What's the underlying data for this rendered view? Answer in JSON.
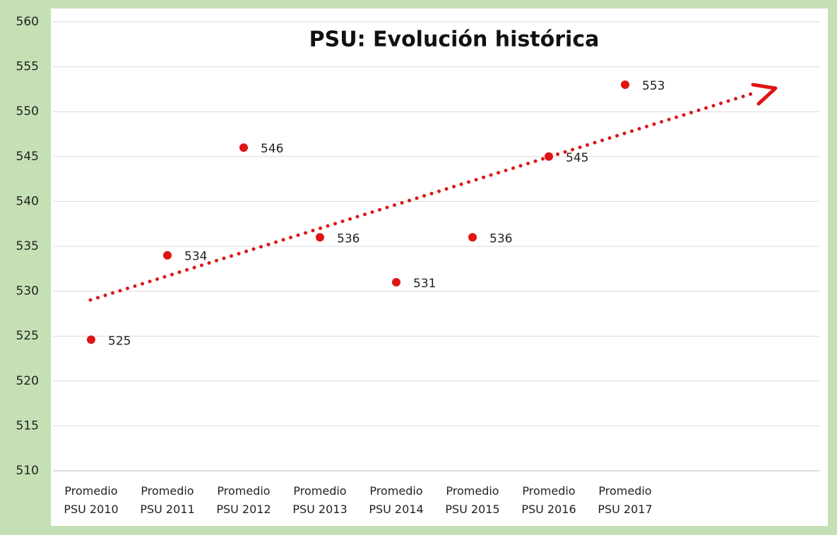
{
  "chart_data": {
    "type": "scatter",
    "title": "PSU: Evolución histórica",
    "categories": [
      "Promedio PSU 2010",
      "Promedio PSU 2011",
      "Promedio PSU 2012",
      "Promedio PSU 2013",
      "Promedio PSU 2014",
      "Promedio PSU 2015",
      "Promedio PSU 2016",
      "Promedio PSU 2017",
      null,
      null
    ],
    "values": [
      524.6,
      534,
      546,
      536,
      531,
      536,
      545,
      553,
      null,
      null
    ],
    "value_labels": [
      "525",
      "534",
      "546",
      "536",
      "531",
      "536",
      "545",
      "553",
      null,
      null
    ],
    "color": "#e01414",
    "ylim": [
      510,
      560
    ],
    "yticks": [
      510,
      515,
      520,
      525,
      530,
      535,
      540,
      545,
      550,
      555,
      560
    ],
    "grid": true
  }
}
